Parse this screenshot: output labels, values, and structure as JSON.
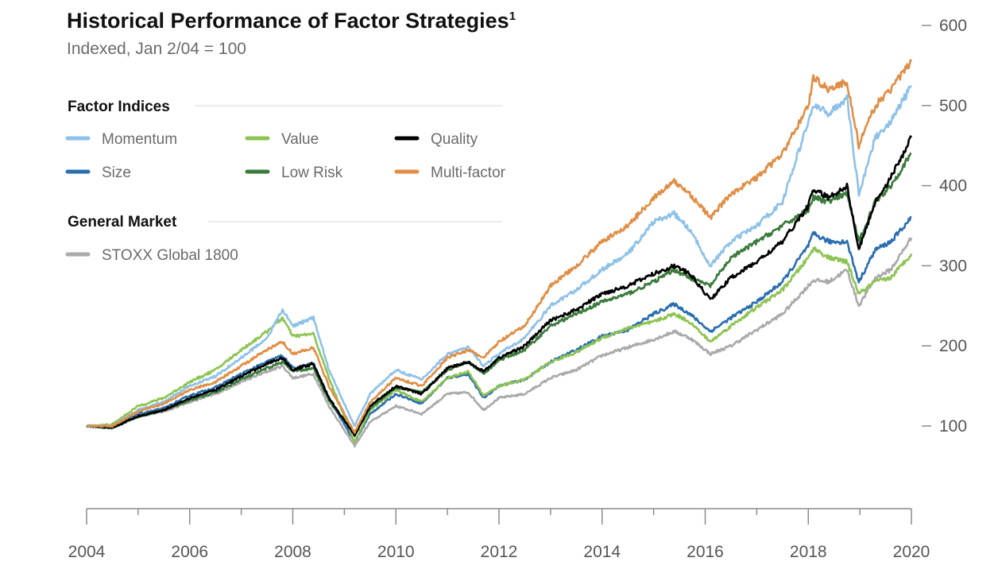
{
  "chart_data": {
    "type": "line",
    "title": "Historical Performance of Factor Strategies",
    "title_footnote": "1",
    "subtitle": "Indexed, Jan 2/04 = 100",
    "legend_groups": [
      {
        "title": "Factor Indices",
        "series": [
          "Momentum",
          "Value",
          "Quality",
          "Size",
          "Low Risk",
          "Multi-factor"
        ]
      },
      {
        "title": "General Market",
        "series": [
          "STOXX Global 1800"
        ]
      }
    ],
    "x_ticks": [
      "2004",
      "2006",
      "2008",
      "2010",
      "2012",
      "2014",
      "2016",
      "2018",
      "2020"
    ],
    "xlim": [
      2004,
      2020
    ],
    "y_ticks": [
      "100",
      "200",
      "300",
      "400",
      "500",
      "600"
    ],
    "ylim": [
      0,
      600
    ],
    "grid": false,
    "series": [
      {
        "name": "STOXX Global 1800",
        "color": "#aaaaaa",
        "x": [
          2004,
          2004.5,
          2005,
          2005.5,
          2006,
          2006.5,
          2007,
          2007.5,
          2007.8,
          2008,
          2008.4,
          2008.7,
          2009.2,
          2009.5,
          2010,
          2010.5,
          2011,
          2011.4,
          2011.7,
          2012,
          2012.5,
          2013,
          2013.5,
          2014,
          2014.5,
          2015,
          2015.4,
          2015.7,
          2016.1,
          2016.5,
          2017,
          2017.5,
          2018,
          2018.1,
          2018.4,
          2018.75,
          2018.98,
          2019.3,
          2019.6,
          2020
        ],
        "values": [
          100,
          97,
          112,
          118,
          130,
          140,
          155,
          168,
          175,
          160,
          165,
          125,
          75,
          105,
          125,
          115,
          140,
          142,
          120,
          135,
          140,
          160,
          170,
          188,
          198,
          208,
          218,
          210,
          190,
          200,
          220,
          240,
          275,
          282,
          280,
          295,
          250,
          285,
          295,
          335
        ]
      },
      {
        "name": "Size",
        "color": "#2a6db0",
        "x": [
          2004,
          2004.5,
          2005,
          2005.5,
          2006,
          2006.5,
          2007,
          2007.5,
          2007.8,
          2008,
          2008.4,
          2008.7,
          2009.2,
          2009.5,
          2010,
          2010.5,
          2011,
          2011.4,
          2011.7,
          2012,
          2012.5,
          2013,
          2013.5,
          2014,
          2014.5,
          2015,
          2015.4,
          2015.7,
          2016.1,
          2016.5,
          2017,
          2017.5,
          2018,
          2018.1,
          2018.4,
          2018.75,
          2018.98,
          2019.3,
          2019.6,
          2020
        ],
        "values": [
          100,
          98,
          115,
          122,
          138,
          148,
          165,
          180,
          188,
          172,
          178,
          135,
          80,
          115,
          140,
          128,
          160,
          165,
          135,
          150,
          158,
          180,
          195,
          212,
          220,
          240,
          252,
          240,
          218,
          235,
          255,
          280,
          325,
          340,
          330,
          330,
          280,
          320,
          330,
          360
        ]
      },
      {
        "name": "Value",
        "color": "#8dc451",
        "x": [
          2004,
          2004.5,
          2005,
          2005.5,
          2006,
          2006.5,
          2007,
          2007.5,
          2007.8,
          2008,
          2008.4,
          2008.7,
          2009.2,
          2009.5,
          2010,
          2010.5,
          2011,
          2011.4,
          2011.7,
          2012,
          2012.5,
          2013,
          2013.5,
          2014,
          2014.5,
          2015,
          2015.4,
          2015.7,
          2016.1,
          2016.5,
          2017,
          2017.5,
          2018,
          2018.1,
          2018.4,
          2018.75,
          2018.98,
          2019.3,
          2019.6,
          2020
        ],
        "values": [
          100,
          102,
          125,
          135,
          155,
          170,
          195,
          218,
          235,
          212,
          215,
          160,
          80,
          120,
          145,
          130,
          160,
          168,
          138,
          150,
          158,
          180,
          192,
          210,
          222,
          230,
          240,
          230,
          205,
          225,
          248,
          270,
          310,
          322,
          310,
          305,
          265,
          280,
          285,
          315
        ]
      },
      {
        "name": "Low Risk",
        "color": "#3a7a3a",
        "x": [
          2004,
          2004.5,
          2005,
          2005.5,
          2006,
          2006.5,
          2007,
          2007.5,
          2007.8,
          2008,
          2008.4,
          2008.7,
          2009.2,
          2009.5,
          2010,
          2010.5,
          2011,
          2011.4,
          2011.7,
          2012,
          2012.5,
          2013,
          2013.5,
          2014,
          2014.5,
          2015,
          2015.4,
          2015.7,
          2016.1,
          2016.5,
          2017,
          2017.5,
          2018,
          2018.1,
          2018.4,
          2018.75,
          2018.98,
          2019.3,
          2019.6,
          2020
        ],
        "values": [
          100,
          98,
          112,
          120,
          132,
          142,
          158,
          172,
          180,
          168,
          172,
          132,
          90,
          122,
          148,
          142,
          170,
          180,
          165,
          182,
          195,
          225,
          240,
          255,
          265,
          280,
          295,
          285,
          275,
          310,
          330,
          350,
          370,
          385,
          380,
          390,
          330,
          380,
          400,
          440
        ]
      },
      {
        "name": "Quality",
        "color": "#000000",
        "x": [
          2004,
          2004.5,
          2005,
          2005.5,
          2006,
          2006.5,
          2007,
          2007.5,
          2007.8,
          2008,
          2008.4,
          2008.7,
          2009.2,
          2009.5,
          2010,
          2010.5,
          2011,
          2011.4,
          2011.7,
          2012,
          2012.5,
          2013,
          2013.5,
          2014,
          2014.5,
          2015,
          2015.4,
          2015.7,
          2016.1,
          2016.5,
          2017,
          2017.5,
          2018,
          2018.1,
          2018.4,
          2018.75,
          2018.98,
          2019.3,
          2019.6,
          2020
        ],
        "values": [
          100,
          98,
          112,
          120,
          135,
          145,
          162,
          178,
          185,
          170,
          178,
          135,
          88,
          125,
          150,
          140,
          172,
          180,
          168,
          185,
          200,
          232,
          245,
          265,
          275,
          290,
          300,
          290,
          258,
          285,
          305,
          330,
          375,
          395,
          385,
          400,
          320,
          380,
          410,
          460
        ]
      },
      {
        "name": "Momentum",
        "color": "#8ec1e8",
        "x": [
          2004,
          2004.5,
          2005,
          2005.5,
          2006,
          2006.5,
          2007,
          2007.5,
          2007.8,
          2008,
          2008.4,
          2008.7,
          2009.2,
          2009.5,
          2010,
          2010.5,
          2011,
          2011.4,
          2011.7,
          2012,
          2012.5,
          2013,
          2013.5,
          2014,
          2014.5,
          2015,
          2015.4,
          2015.7,
          2016.1,
          2016.5,
          2017,
          2017.5,
          2018,
          2018.1,
          2018.4,
          2018.75,
          2018.98,
          2019.3,
          2019.6,
          2020
        ],
        "values": [
          100,
          100,
          120,
          130,
          150,
          162,
          185,
          210,
          245,
          225,
          235,
          170,
          100,
          140,
          170,
          158,
          190,
          198,
          175,
          190,
          210,
          250,
          270,
          295,
          315,
          355,
          365,
          345,
          300,
          330,
          350,
          380,
          480,
          500,
          490,
          510,
          390,
          460,
          480,
          525
        ]
      },
      {
        "name": "Multi-factor",
        "color": "#e08e45",
        "x": [
          2004,
          2004.5,
          2005,
          2005.5,
          2006,
          2006.5,
          2007,
          2007.5,
          2007.8,
          2008,
          2008.4,
          2008.7,
          2009.2,
          2009.5,
          2010,
          2010.5,
          2011,
          2011.4,
          2011.7,
          2012,
          2012.5,
          2013,
          2013.5,
          2014,
          2014.5,
          2015,
          2015.4,
          2015.7,
          2016.1,
          2016.5,
          2017,
          2017.5,
          2018,
          2018.1,
          2018.4,
          2018.75,
          2018.98,
          2019.3,
          2019.6,
          2020
        ],
        "values": [
          100,
          100,
          118,
          128,
          145,
          155,
          175,
          195,
          205,
          190,
          198,
          150,
          92,
          130,
          160,
          150,
          185,
          195,
          185,
          205,
          225,
          275,
          300,
          330,
          350,
          385,
          405,
          390,
          360,
          390,
          410,
          440,
          500,
          535,
          520,
          530,
          450,
          500,
          520,
          555
        ]
      }
    ]
  }
}
